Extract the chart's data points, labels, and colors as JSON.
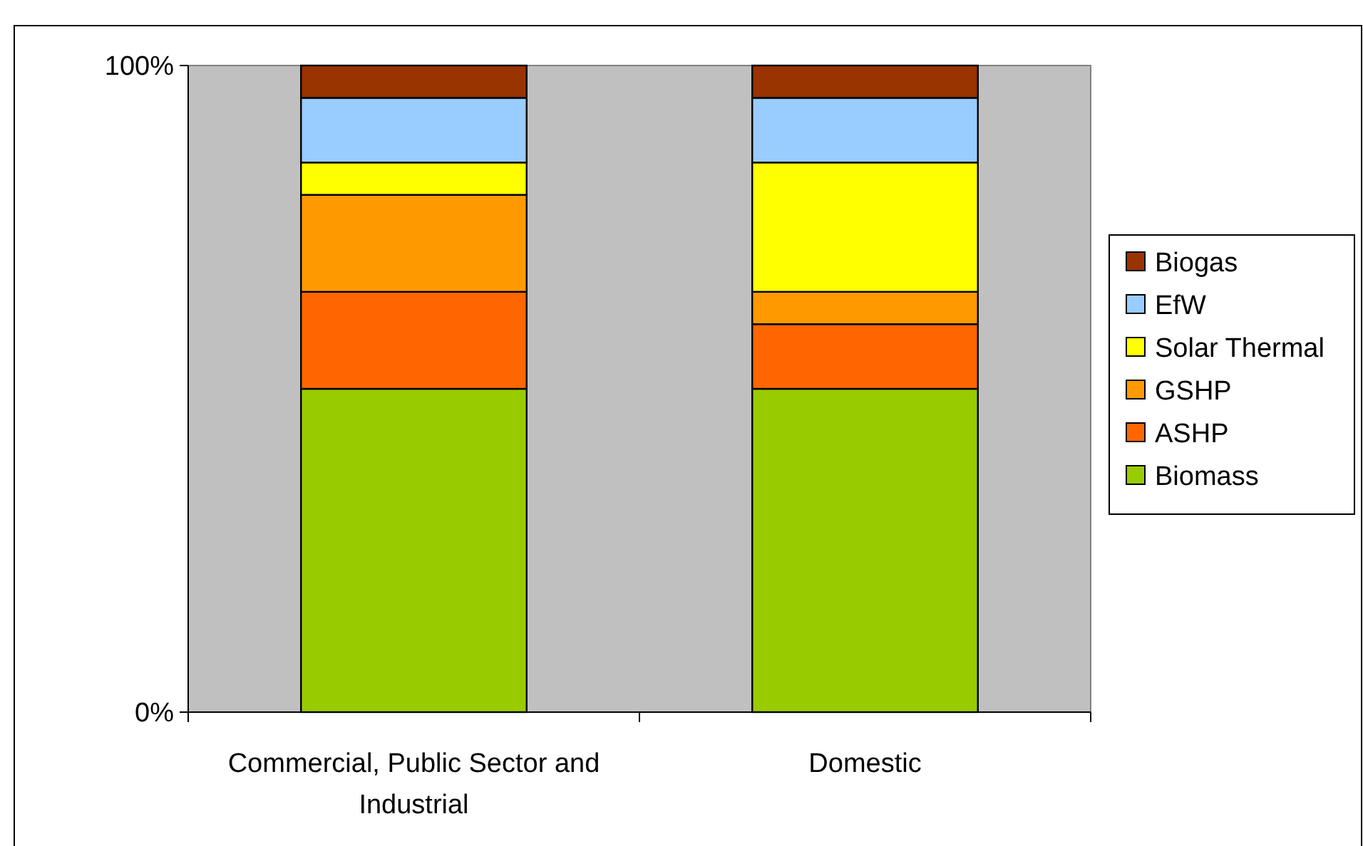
{
  "chart_data": {
    "type": "bar",
    "stacked": true,
    "categories": [
      "Commercial, Public Sector and Industrial",
      "Domestic"
    ],
    "series": [
      {
        "name": "Biomass",
        "color": "#99cc00",
        "values": [
          50,
          50
        ]
      },
      {
        "name": "ASHP",
        "color": "#ff6600",
        "values": [
          15,
          10
        ]
      },
      {
        "name": "GSHP",
        "color": "#ff9900",
        "values": [
          15,
          5
        ]
      },
      {
        "name": "Solar Thermal",
        "color": "#ffff00",
        "values": [
          5,
          20
        ]
      },
      {
        "name": "EfW",
        "color": "#99ccff",
        "values": [
          10,
          10
        ]
      },
      {
        "name": "Biogas",
        "color": "#993300",
        "values": [
          5,
          5
        ]
      }
    ],
    "ylim": [
      0,
      100
    ],
    "yticks": [
      {
        "value": 0,
        "label": "0%"
      },
      {
        "value": 100,
        "label": "100%"
      }
    ],
    "grid": false,
    "legend": "right"
  }
}
